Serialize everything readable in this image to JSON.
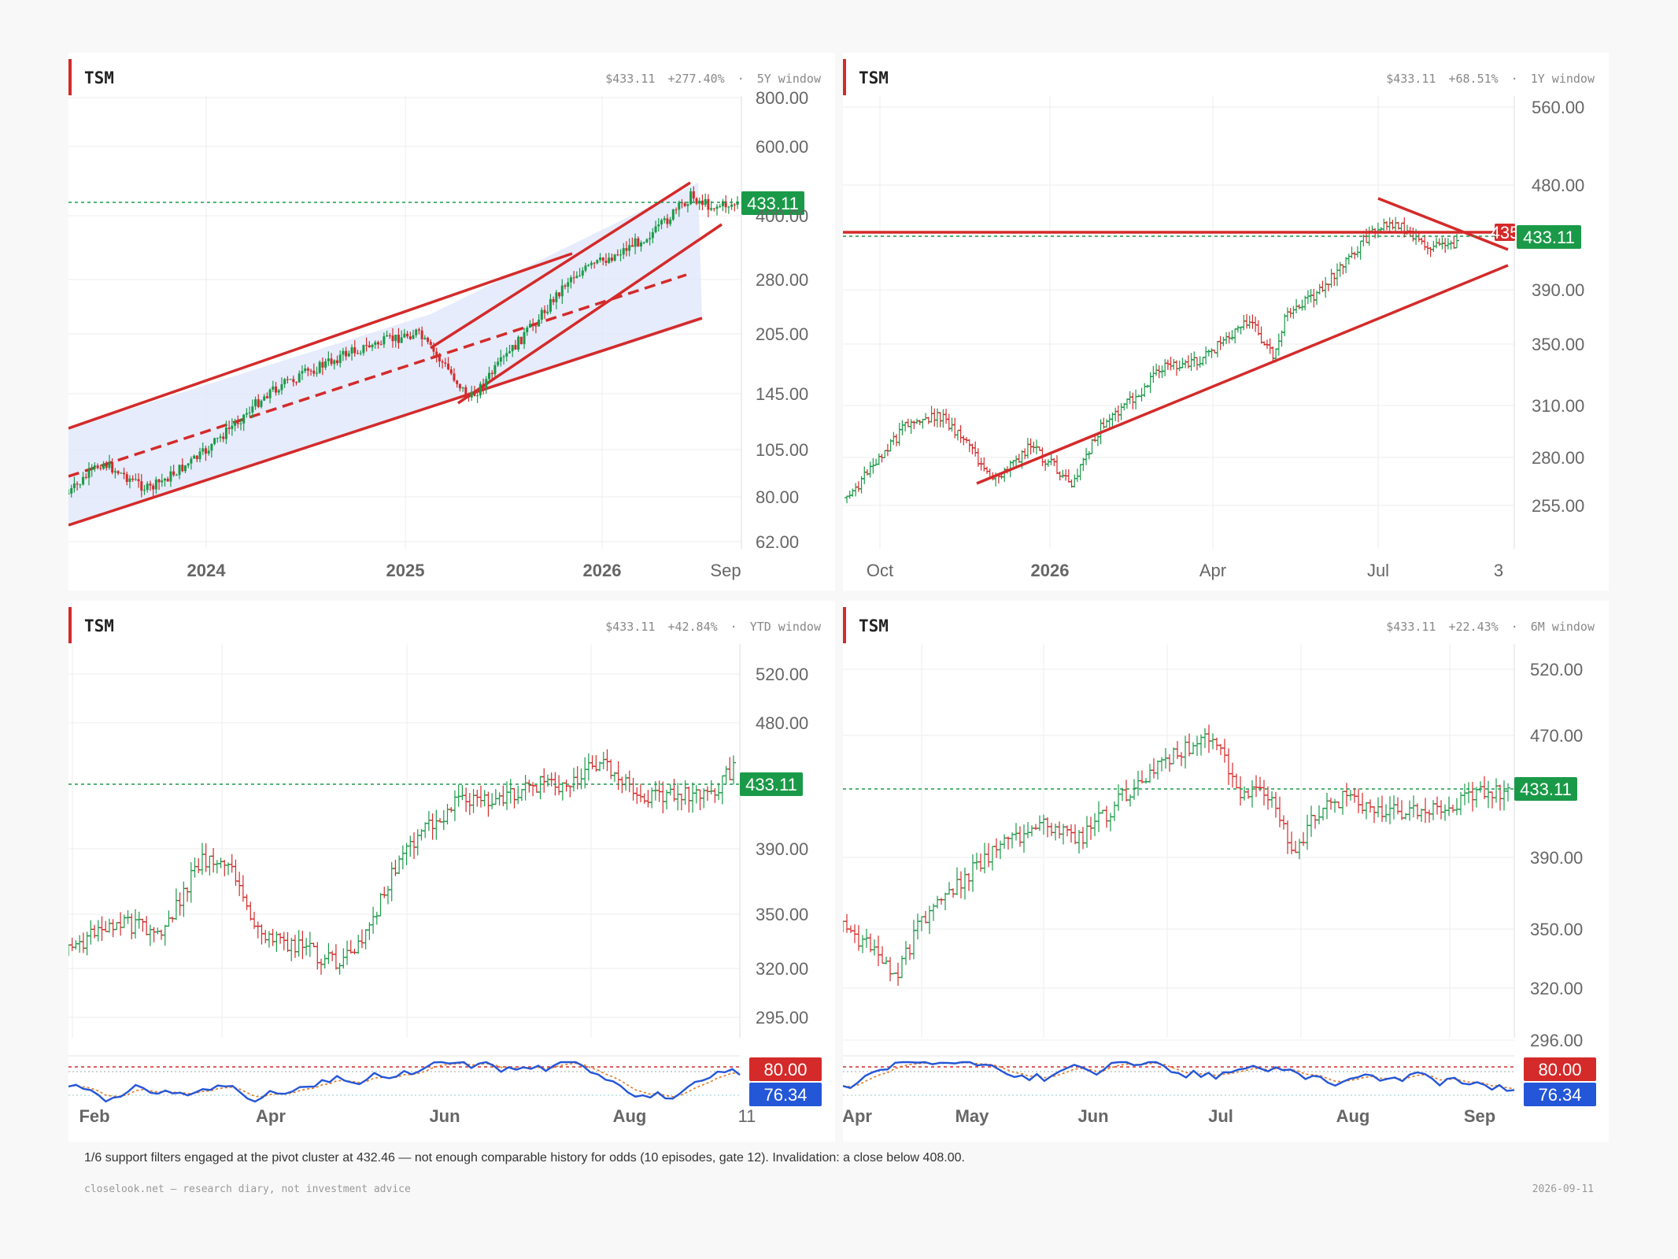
{
  "panels": [
    {
      "ticker": "TSM",
      "price": "$433.11",
      "change": "+277.40%",
      "sep": "·",
      "window": "5Y window",
      "y_ticks": [
        "800.00",
        "600.00",
        "400.00",
        "280.00",
        "205.00",
        "145.00",
        "105.00",
        "80.00",
        "62.00"
      ],
      "x_ticks": [
        "2024",
        "2025",
        "2026",
        "Sep"
      ],
      "last": "433.11"
    },
    {
      "ticker": "TSM",
      "price": "$433.11",
      "change": "+68.51%",
      "sep": "·",
      "window": "1Y window",
      "y_ticks": [
        "560.00",
        "480.00",
        "433.11",
        "390.00",
        "350.00",
        "310.00",
        "280.00",
        "255.00"
      ],
      "x_ticks": [
        "Oct",
        "2026",
        "Apr",
        "Jul",
        "3"
      ],
      "last": "433.11",
      "alert": "435"
    },
    {
      "ticker": "TSM",
      "price": "$433.11",
      "change": "+42.84%",
      "sep": "·",
      "window": "YTD window",
      "y_ticks": [
        "520.00",
        "480.00",
        "390.00",
        "350.00",
        "320.00",
        "295.00"
      ],
      "x_ticks": [
        "Feb",
        "Apr",
        "Jun",
        "Aug",
        "11"
      ],
      "last": "433.11",
      "osc_hi": "80.00",
      "osc_val": "76.34"
    },
    {
      "ticker": "TSM",
      "price": "$433.11",
      "change": "+22.43%",
      "sep": "·",
      "window": "6M window",
      "y_ticks": [
        "520.00",
        "470.00",
        "390.00",
        "350.00",
        "320.00",
        "296.00"
      ],
      "x_ticks": [
        "Apr",
        "May",
        "Jun",
        "Jul",
        "Aug",
        "Sep"
      ],
      "last": "433.11",
      "osc_hi": "80.00",
      "osc_val": "76.34"
    }
  ],
  "note": "1/6 support filters engaged at the pivot cluster at 432.46 — not enough comparable history for odds (10 episodes, gate 12). Invalidation: a close below 408.00.",
  "footer_left": "closelook.net — research diary, not investment advice",
  "footer_right": "2026-09-11",
  "colors": {
    "up": "#1a9a48",
    "down": "#d42a2a",
    "trend": "#d42a2a",
    "channel_fill": "#dde5fb",
    "last_badge": "#1a9a48",
    "osc_line": "#2456d8",
    "osc_signal": "#e07820",
    "osc_hi_badge": "#d42a2a",
    "osc_val_badge": "#2456d8"
  },
  "chart_data": [
    {
      "type": "candlestick",
      "title": "TSM",
      "window": "5Y window",
      "last": 433.11,
      "ylim": [
        62,
        800
      ],
      "y_scale": "log"
    },
    {
      "type": "candlestick",
      "title": "TSM",
      "window": "1Y window",
      "last": 433.11,
      "ylim": [
        255,
        560
      ]
    },
    {
      "type": "candlestick",
      "title": "TSM",
      "window": "YTD window",
      "last": 433.11,
      "ylim": [
        295,
        520
      ],
      "oscillator": {
        "upper": 80,
        "last": 76.34
      }
    },
    {
      "type": "candlestick",
      "title": "TSM",
      "window": "6M window",
      "last": 433.11,
      "ylim": [
        296,
        520
      ],
      "oscillator": {
        "upper": 80,
        "last": 76.34
      }
    }
  ]
}
